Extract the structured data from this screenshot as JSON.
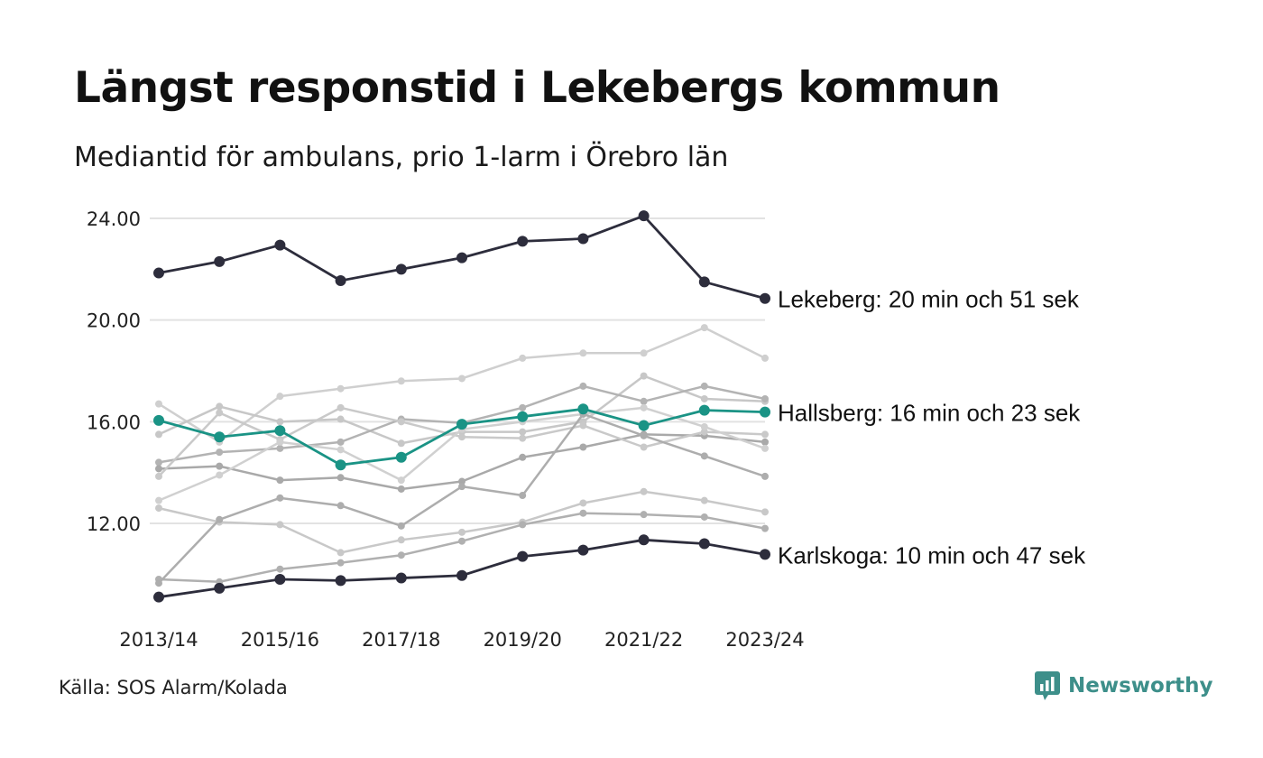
{
  "header": {
    "title": "Längst responstid i Lekebergs kommun",
    "subtitle": "Mediantid för ambulans, prio 1-larm i Örebro län"
  },
  "footer": {
    "source": "Källa: SOS Alarm/Kolada",
    "brand": "Newsworthy"
  },
  "colors": {
    "highlight_dark": "#2d2d3c",
    "highlight_teal": "#1a9385",
    "background_gray": "#bdbdbd",
    "grid": "#e2e2e2",
    "brand": "#3d8f8a"
  },
  "chart_data": {
    "type": "line",
    "title": "Längst responstid i Lekebergs kommun",
    "subtitle": "Mediantid för ambulans, prio 1-larm i Örebro län",
    "x": [
      "2013/14",
      "2014/15",
      "2015/16",
      "2016/17",
      "2017/18",
      "2018/19",
      "2019/20",
      "2020/21",
      "2021/22",
      "2022/23",
      "2023/24"
    ],
    "x_tick_labels": [
      "2013/14",
      "2015/16",
      "2017/18",
      "2019/20",
      "2021/22",
      "2023/24"
    ],
    "y_ticks": [
      12,
      16,
      20,
      24
    ],
    "y_tick_labels": [
      "12.00",
      "16.00",
      "20.00",
      "24.00"
    ],
    "ylim": [
      8.6,
      24.6
    ],
    "grid": true,
    "highlighted_series": [
      {
        "label": "Lekeberg: 20 min och 51 sek",
        "style": "dark",
        "values": [
          21.85,
          22.3,
          22.95,
          21.55,
          22.0,
          22.45,
          23.1,
          23.2,
          24.1,
          21.5,
          20.85
        ]
      },
      {
        "label": "Hallsberg: 16 min och 23 sek",
        "style": "teal",
        "values": [
          16.05,
          15.4,
          15.65,
          14.3,
          14.6,
          15.9,
          16.2,
          16.5,
          15.85,
          16.45,
          16.38
        ]
      },
      {
        "label": "Karlskoga: 10 min och 47 sek",
        "style": "dark",
        "values": [
          9.1,
          9.45,
          9.8,
          9.75,
          9.85,
          9.95,
          10.7,
          10.95,
          11.35,
          11.2,
          10.78
        ]
      }
    ],
    "background_series": [
      {
        "values": [
          16.7,
          15.2,
          17.0,
          17.3,
          17.6,
          17.7,
          18.5,
          18.7,
          18.7,
          19.7,
          18.5
        ]
      },
      {
        "values": [
          15.5,
          16.6,
          16.0,
          16.1,
          15.15,
          15.6,
          15.6,
          16.0,
          17.8,
          16.9,
          16.8
        ]
      },
      {
        "values": [
          14.4,
          14.8,
          14.95,
          15.2,
          16.1,
          15.95,
          16.55,
          17.4,
          16.8,
          17.4,
          16.9
        ]
      },
      {
        "values": [
          14.15,
          14.25,
          13.7,
          13.8,
          13.35,
          13.65,
          14.6,
          15.0,
          15.5,
          15.45,
          15.2
        ]
      },
      {
        "values": [
          13.85,
          16.35,
          15.3,
          16.55,
          16.0,
          15.4,
          15.35,
          15.85,
          15.0,
          15.6,
          15.5
        ]
      },
      {
        "values": [
          12.9,
          13.9,
          15.2,
          14.9,
          13.7,
          15.7,
          16.0,
          16.3,
          16.55,
          15.8,
          14.95
        ]
      },
      {
        "values": [
          12.6,
          12.05,
          11.95,
          10.85,
          11.35,
          11.65,
          12.05,
          12.8,
          13.25,
          12.9,
          12.45
        ]
      },
      {
        "values": [
          9.8,
          9.7,
          10.2,
          10.45,
          10.75,
          11.3,
          11.95,
          12.4,
          12.35,
          12.25,
          11.8
        ]
      },
      {
        "values": [
          9.65,
          12.15,
          13.0,
          12.7,
          11.9,
          13.45,
          13.1,
          16.3,
          15.45,
          14.65,
          13.85
        ]
      }
    ]
  }
}
